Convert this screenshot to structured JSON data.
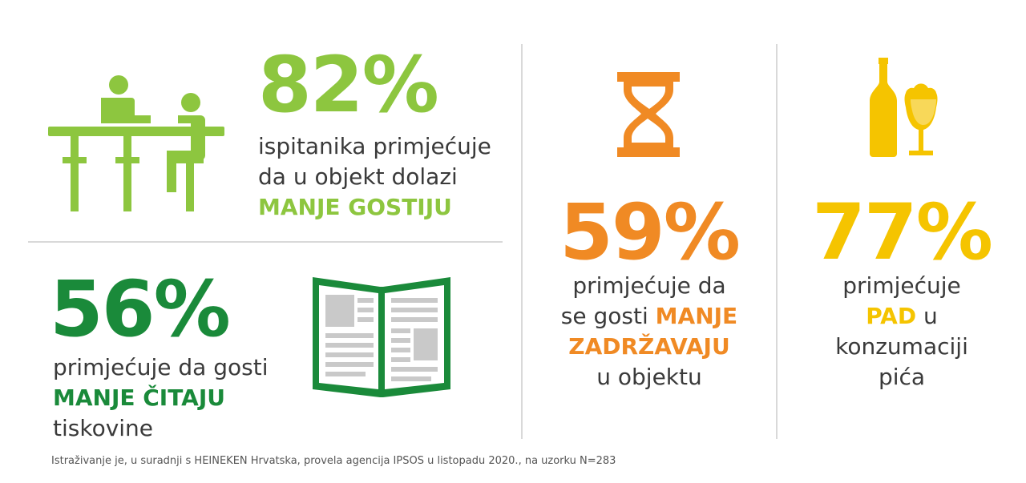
{
  "colors": {
    "light_green": "#8dc63f",
    "dark_green": "#1a8a3a",
    "orange": "#f08a24",
    "yellow": "#f5c400",
    "text": "#3a3a3a"
  },
  "stat_guests": {
    "percent": "82%",
    "line1": "ispitanika primjećuje",
    "line2": "da u objekt dolazi",
    "highlight": "MANJE GOSTIJU",
    "icon": "bar-people-icon"
  },
  "stat_reading": {
    "percent": "56%",
    "line1": "primjećuje da gosti",
    "highlight": "MANJE ČITAJU",
    "line3": "tiskovine",
    "icon": "newspaper-icon"
  },
  "stat_stay": {
    "percent": "59%",
    "line1": "primjećuje da",
    "line2_prefix": "se gosti",
    "line2_highlight": "MANJE",
    "line3_highlight": "ZADRŽAVAJU",
    "line4": "u objektu",
    "icon": "hourglass-icon"
  },
  "stat_drinks": {
    "percent": "77%",
    "line1": "primjećuje",
    "line2_highlight": "PAD",
    "line2_suffix": "u",
    "line3": "konzumaciji",
    "line4": "pića",
    "icon": "beer-bottle-glass-icon"
  },
  "footnote": "Istraživanje je, u suradnji s HEINEKEN Hrvatska, provela agencija IPSOS u listopadu 2020., na uzorku N=283"
}
